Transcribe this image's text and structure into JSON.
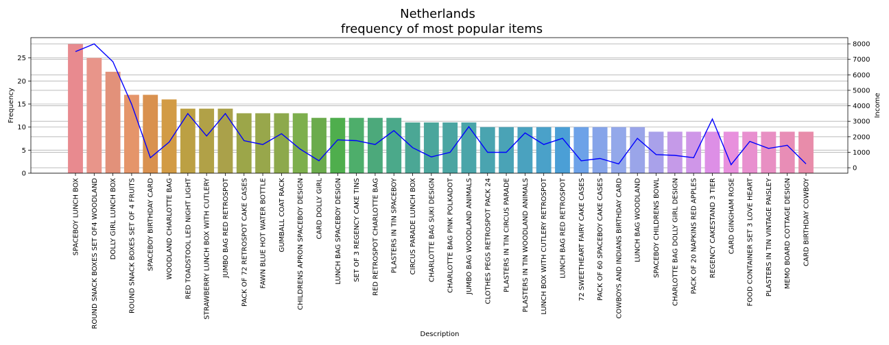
{
  "chart_data": {
    "type": "bar",
    "title": "Netherlands",
    "subtitle": "frequency of most popular items",
    "xlabel": "Description",
    "ylabel": "Frequency",
    "y2label": "Income",
    "ylim": [
      0,
      29.4
    ],
    "y_ticks": [
      0,
      5,
      10,
      15,
      20,
      25
    ],
    "y2lim": [
      -350,
      8400
    ],
    "y2_ticks": [
      0,
      1000,
      2000,
      3000,
      4000,
      5000,
      6000,
      7000,
      8000
    ],
    "grid": "horizontal",
    "categories": [
      "SPACEBOY LUNCH BOX",
      "ROUND SNACK BOXES SET OF4 WOODLAND",
      "DOLLY GIRL LUNCH BOX",
      "ROUND SNACK BOXES SET OF 4 FRUITS",
      "SPACEBOY BIRTHDAY CARD",
      "WOODLAND CHARLOTTE BAG",
      "RED TOADSTOOL LED NIGHT LIGHT",
      "STRAWBERRY LUNCH BOX WITH CUTLERY",
      "JUMBO BAG RED RETROSPOT",
      "PACK OF 72 RETROSPOT CAKE CASES",
      "FAWN BLUE HOT WATER BOTTLE",
      "GUMBALL COAT RACK",
      "CHILDRENS APRON SPACEBOY DESIGN",
      "CARD DOLLY GIRL",
      "LUNCH BAG SPACEBOY DESIGN",
      "SET OF 3 REGENCY CAKE TINS",
      "RED RETROSPOT CHARLOTTE BAG",
      "PLASTERS IN TIN SPACEBOY",
      "CIRCUS PARADE LUNCH BOX",
      "CHARLOTTE BAG SUKI DESIGN",
      "CHARLOTTE BAG PINK POLKADOT",
      "JUMBO BAG WOODLAND ANIMALS",
      "CLOTHES PEGS RETROSPOT PACK 24",
      "PLASTERS IN TIN CIRCUS PARADE",
      "PLASTERS IN TIN WOODLAND ANIMALS",
      "LUNCH BOX WITH CUTLERY RETROSPOT",
      "LUNCH BAG RED RETROSPOT",
      "72 SWEETHEART FAIRY CAKE CASES",
      "PACK OF 60 SPACEBOY CAKE CASES",
      "COWBOYS AND INDIANS BIRTHDAY CARD",
      "LUNCH BAG WOODLAND",
      "SPACEBOY CHILDRENS BOWL",
      "CHARLOTTE BAG DOLLY GIRL DESIGN",
      "PACK OF 20 NAPKINS RED APPLES",
      "REGENCY CAKESTAND 3 TIER",
      "CARD GINGHAM ROSE",
      "FOOD CONTAINER SET 3 LOVE HEART",
      "PLASTERS IN TIN VINTAGE PAISLEY",
      "MEMO BOARD COTTAGE DESIGN",
      "CARD BIRTHDAY COWBOY"
    ],
    "series": [
      {
        "name": "Frequency",
        "type": "bar",
        "values": [
          28,
          25,
          22,
          17,
          17,
          16,
          14,
          14,
          14,
          13,
          13,
          13,
          13,
          12,
          12,
          12,
          12,
          12,
          11,
          11,
          11,
          11,
          10,
          10,
          10,
          10,
          10,
          10,
          10,
          10,
          10,
          9,
          9,
          9,
          9,
          9,
          9,
          9,
          9,
          9
        ]
      },
      {
        "name": "Income",
        "type": "line",
        "values": [
          7500,
          8000,
          6850,
          4100,
          650,
          1650,
          3500,
          2050,
          3500,
          1750,
          1500,
          2200,
          1200,
          450,
          1800,
          1750,
          1500,
          2400,
          1300,
          700,
          1000,
          2650,
          1000,
          1000,
          2250,
          1500,
          1900,
          450,
          600,
          250,
          1900,
          850,
          800,
          650,
          3150,
          200,
          1700,
          1250,
          1450,
          250
        ]
      }
    ],
    "colors": {
      "line": "#0000ff",
      "grid": "#b0b0b0",
      "bars": [
        "#e88a8f",
        "#e8958a",
        "#e2917a",
        "#e5956a",
        "#d9914f",
        "#d29b45",
        "#bca043",
        "#b1a147",
        "#aaa14a",
        "#9ca649",
        "#98a74b",
        "#8da94c",
        "#7daf4d",
        "#6bab4c",
        "#4fae4d",
        "#4eae6b",
        "#4ca97b",
        "#4ba98a",
        "#4ba795",
        "#4ba69c",
        "#4ba5a2",
        "#4aa5a9",
        "#4aa4b0",
        "#4aa3b6",
        "#4aa2bf",
        "#4aa1c9",
        "#4b9fd6",
        "#6da2e8",
        "#86a4e9",
        "#93a8ea",
        "#9aa5e9",
        "#a9a1ea",
        "#c59ae8",
        "#cf96e8",
        "#dd8fe6",
        "#e890dd",
        "#e890cf",
        "#e88fc3",
        "#e88db6",
        "#e88caa"
      ]
    }
  }
}
